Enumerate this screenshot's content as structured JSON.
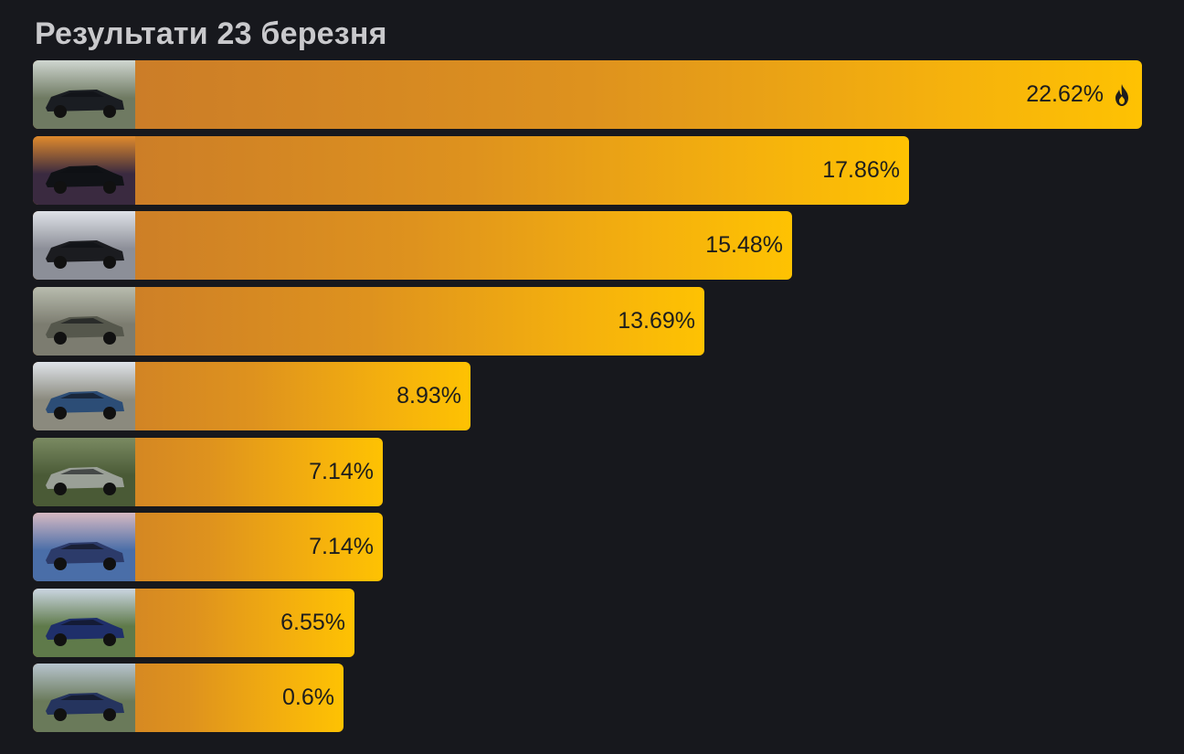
{
  "title": "Результати 23 березня",
  "chart_data": {
    "type": "bar",
    "orientation": "horizontal",
    "title": "Результати 23 березня",
    "unit": "%",
    "xlim": [
      0,
      22.62
    ],
    "grid": false,
    "legend": "none",
    "bars": [
      {
        "value": 22.62,
        "label": "22.62%",
        "icon": "fire-icon",
        "image": "black-estate-car-photo",
        "colors": [
          "#cfd6d0",
          "#1a1d22",
          "#6f7a62"
        ]
      },
      {
        "value": 17.86,
        "label": "17.86%",
        "icon": null,
        "image": "car-headlight-sunset-photo",
        "colors": [
          "#e08a2c",
          "#101216",
          "#3a2a40"
        ]
      },
      {
        "value": 15.48,
        "label": "15.48%",
        "icon": null,
        "image": "black-car-front-snow-photo",
        "colors": [
          "#dfe2e8",
          "#1b1c20",
          "#8c8f98"
        ]
      },
      {
        "value": 13.69,
        "label": "13.69%",
        "icon": null,
        "image": "grey-sedan-forest-photo",
        "colors": [
          "#b8bcae",
          "#55574c",
          "#7c7c70"
        ]
      },
      {
        "value": 8.93,
        "label": "8.93%",
        "icon": null,
        "image": "blue-sedan-street-photo",
        "colors": [
          "#dfe4ea",
          "#2c4d76",
          "#8b8a7e"
        ]
      },
      {
        "value": 7.14,
        "label": "7.14%",
        "icon": null,
        "image": "silver-sedan-park-photo",
        "colors": [
          "#7a8a62",
          "#9aa097",
          "#4a5a36"
        ]
      },
      {
        "value": 7.14,
        "label": "7.14%",
        "icon": null,
        "image": "car-night-square-photo",
        "colors": [
          "#d6b9c3",
          "#2c3b6a",
          "#4a6ea8"
        ]
      },
      {
        "value": 6.55,
        "label": "6.55%",
        "icon": null,
        "image": "blue-suv-road-photo",
        "colors": [
          "#cbd6e2",
          "#1f2f6a",
          "#5f7a4a"
        ]
      },
      {
        "value": 0.6,
        "label": "0.6%",
        "icon": null,
        "image": "blue-hatchback-yard-photo",
        "colors": [
          "#b7c4ce",
          "#25345e",
          "#6a7a5a"
        ]
      }
    ]
  }
}
